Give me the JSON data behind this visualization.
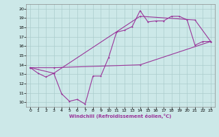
{
  "xlabel": "Windchill (Refroidissement éolien,°C)",
  "background_color": "#cce8e8",
  "grid_color": "#aacccc",
  "line_color": "#993399",
  "xlim": [
    -0.5,
    23.5
  ],
  "ylim": [
    9.5,
    20.5
  ],
  "xticks": [
    0,
    1,
    2,
    3,
    4,
    5,
    6,
    7,
    8,
    9,
    10,
    11,
    12,
    13,
    14,
    15,
    16,
    17,
    18,
    19,
    20,
    21,
    22,
    23
  ],
  "yticks": [
    10,
    11,
    12,
    13,
    14,
    15,
    16,
    17,
    18,
    19,
    20
  ],
  "line1_x": [
    0,
    1,
    2,
    3,
    4,
    5,
    6,
    7,
    8,
    9,
    10,
    11,
    12,
    13,
    14,
    15,
    16,
    17,
    18,
    19,
    20,
    21,
    22,
    23
  ],
  "line1_y": [
    13.7,
    13.1,
    12.7,
    13.1,
    10.9,
    10.1,
    10.3,
    9.8,
    12.8,
    12.8,
    14.8,
    17.5,
    17.7,
    18.1,
    19.8,
    18.6,
    18.7,
    18.7,
    19.2,
    19.2,
    18.8,
    16.1,
    16.5,
    16.5
  ],
  "line2_x": [
    0,
    3,
    14,
    23
  ],
  "line2_y": [
    13.7,
    13.7,
    14.0,
    16.5
  ],
  "line3_x": [
    0,
    3,
    14,
    21,
    23
  ],
  "line3_y": [
    13.7,
    13.1,
    19.2,
    18.8,
    16.5
  ]
}
